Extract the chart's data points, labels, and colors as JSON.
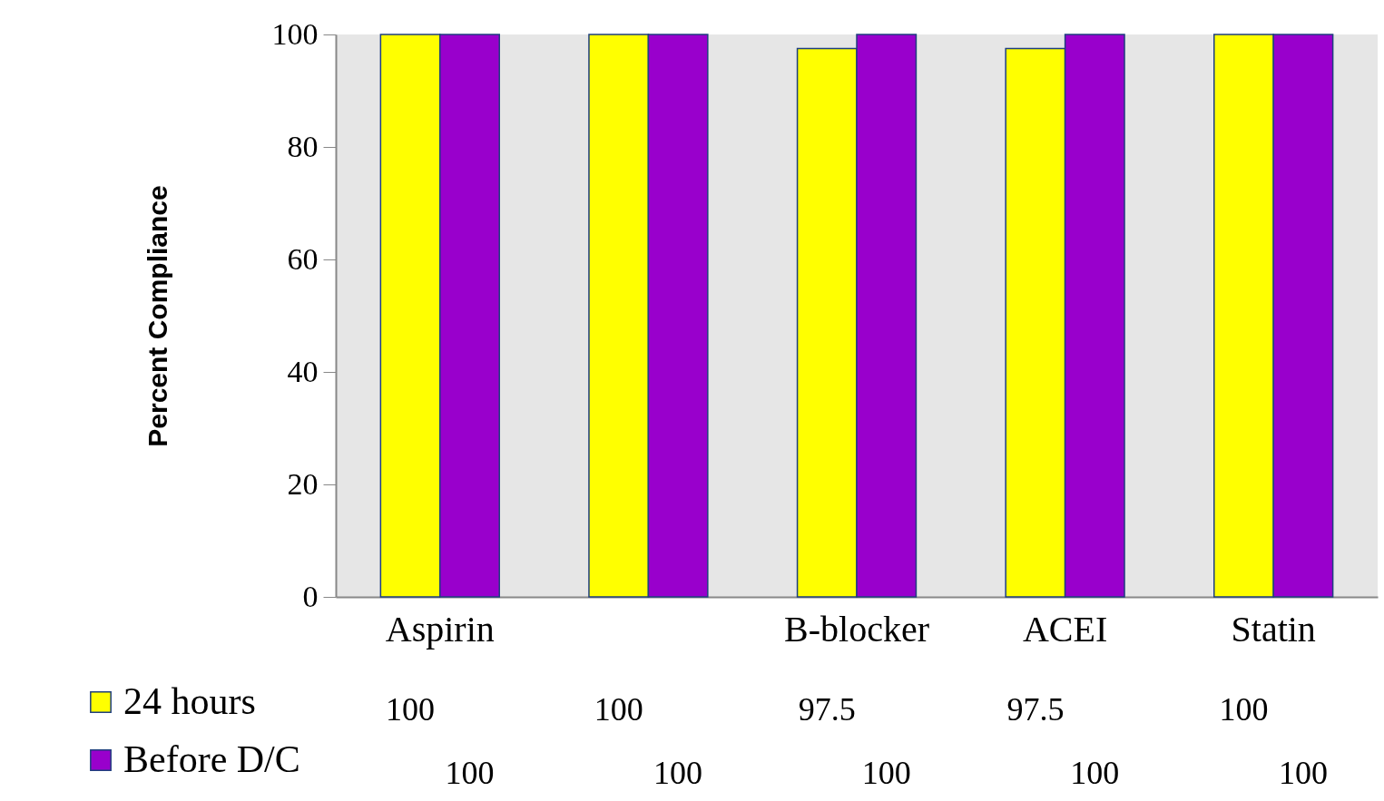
{
  "chart_data": {
    "type": "bar",
    "ylabel": "Percent Compliance",
    "categories": [
      "Aspirin",
      null,
      "B-blocker",
      "ACEI",
      "Statin"
    ],
    "series": [
      {
        "name": "24 hours",
        "color": "#ffff00",
        "values": [
          100,
          100,
          97.5,
          97.5,
          100
        ]
      },
      {
        "name": "Before D/C",
        "color": "#9900cc",
        "values": [
          100,
          100,
          100,
          100,
          100
        ]
      }
    ],
    "ylim": [
      0,
      100
    ],
    "yticks": [
      0,
      20,
      40,
      60,
      80,
      100
    ],
    "grid": false,
    "legend": "bottom left",
    "data_labels": true
  }
}
